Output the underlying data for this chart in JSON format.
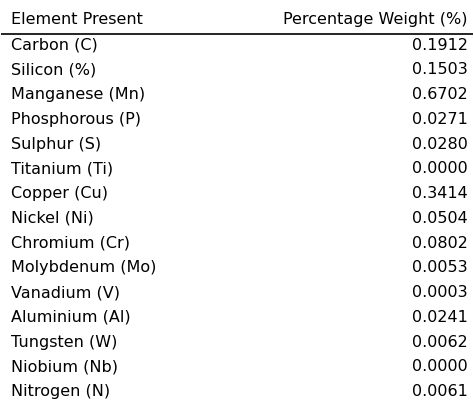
{
  "col1_header": "Element Present",
  "col2_header": "Percentage Weight (%)",
  "rows": [
    [
      "Carbon (C)",
      "0.1912"
    ],
    [
      "Silicon (%)",
      "0.1503"
    ],
    [
      "Manganese (Mn)",
      "0.6702"
    ],
    [
      "Phosphorous (P)",
      "0.0271"
    ],
    [
      "Sulphur (S)",
      "0.0280"
    ],
    [
      "Titanium (Ti)",
      "0.0000"
    ],
    [
      "Copper (Cu)",
      "0.3414"
    ],
    [
      "Nickel (Ni)",
      "0.0504"
    ],
    [
      "Chromium (Cr)",
      "0.0802"
    ],
    [
      "Molybdenum (Mo)",
      "0.0053"
    ],
    [
      "Vanadium (V)",
      "0.0003"
    ],
    [
      "Aluminium (Al)",
      "0.0241"
    ],
    [
      "Tungsten (W)",
      "0.0062"
    ],
    [
      "Niobium (Nb)",
      "0.0000"
    ],
    [
      "Nitrogen (N)",
      "0.0061"
    ]
  ],
  "background_color": "#ffffff",
  "text_color": "#000000",
  "header_line_color": "#000000",
  "font_size": 11.5,
  "header_font_size": 11.5
}
